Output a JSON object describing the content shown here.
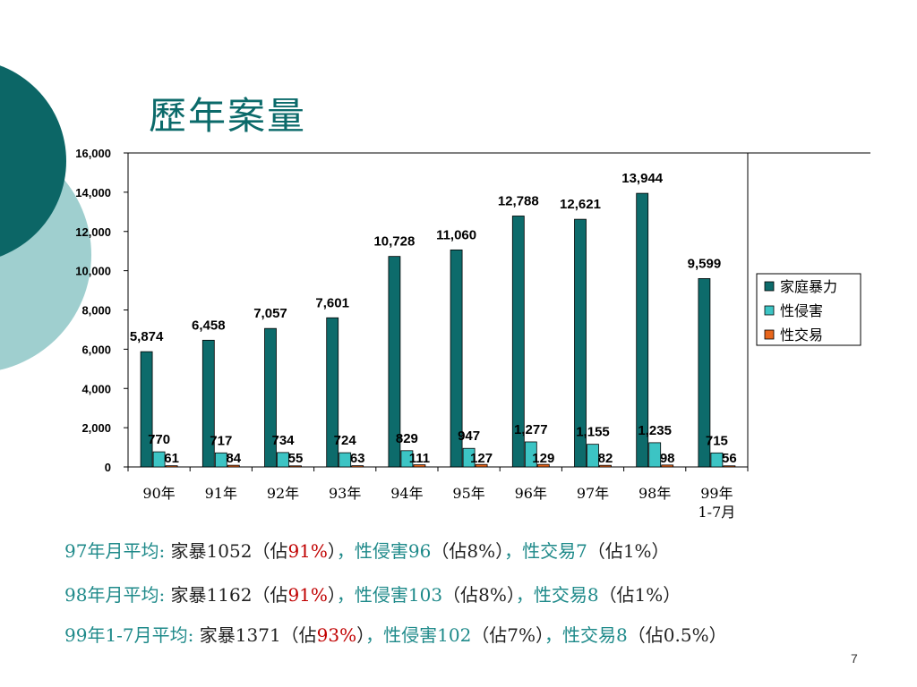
{
  "slide": {
    "title": "歷年案量",
    "page_number": "7"
  },
  "colors": {
    "family_violence": "#0d6b6b",
    "sexual_assault": "#3cc4c4",
    "sex_trade": "#e8661c",
    "accent_text": "#1f8a8a",
    "highlight": "#c00000"
  },
  "chart_data": {
    "type": "bar",
    "categories": [
      "90年",
      "91年",
      "92年",
      "93年",
      "94年",
      "95年",
      "96年",
      "97年",
      "98年",
      "99年\n1-7月"
    ],
    "series": [
      {
        "name": "家庭暴力",
        "values": [
          5874,
          6458,
          7057,
          7601,
          10728,
          11060,
          12788,
          12621,
          13944,
          9599
        ],
        "labels": [
          "5,874",
          "6,458",
          "7,057",
          "7,601",
          "10,728",
          "11,060",
          "12,788",
          "12,621",
          "13,944",
          "9,599"
        ]
      },
      {
        "name": "性侵害",
        "values": [
          770,
          717,
          734,
          724,
          829,
          947,
          1277,
          1155,
          1235,
          715
        ],
        "labels": [
          "770",
          "717",
          "734",
          "724",
          "829",
          "947",
          "1,277",
          "1,155",
          "1,235",
          "715"
        ]
      },
      {
        "name": "性交易",
        "values": [
          61,
          84,
          55,
          63,
          111,
          127,
          129,
          82,
          98,
          56
        ],
        "labels": [
          "61",
          "84",
          "55",
          "63",
          "111",
          "127",
          "129",
          "82",
          "98",
          "56"
        ]
      }
    ],
    "yticks": [
      "0",
      "2,000",
      "4,000",
      "6,000",
      "8,000",
      "10,000",
      "12,000",
      "14,000",
      "16,000"
    ],
    "ylim": [
      0,
      16000
    ],
    "legend_position": "right",
    "grid": false
  },
  "stats": [
    {
      "prefix": "97年月平均:",
      "fv": "家暴1052（佔",
      "fv_pct": "91%",
      "fv_close": "）",
      "sa": "，性侵害96",
      "sa_pct": "（佔8%）",
      "st": "，性交易7",
      "st_pct": "（佔1%）"
    },
    {
      "prefix": "98年月平均:",
      "fv": "家暴1162（佔",
      "fv_pct": "91%",
      "fv_close": "）",
      "sa": "，性侵害103",
      "sa_pct": "（佔8%）",
      "st": "，性交易8",
      "st_pct": "（佔1%）"
    },
    {
      "prefix": "99年1-7月平均:",
      "fv": "家暴1371（佔",
      "fv_pct": "93%",
      "fv_close": "）",
      "sa": "，性侵害102",
      "sa_pct": "（佔7%）",
      "st": "，性交易8",
      "st_pct": "（佔0.5%）"
    }
  ]
}
